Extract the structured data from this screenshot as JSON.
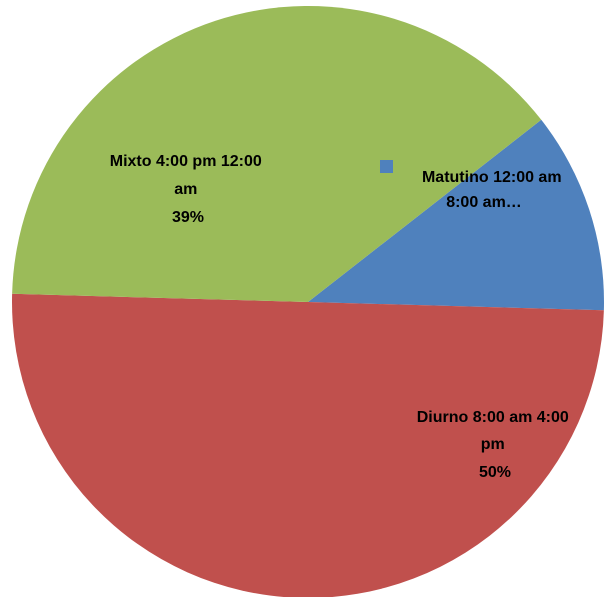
{
  "chart_data": {
    "type": "pie",
    "slices": [
      {
        "name": "Matutino 12:00 am 8:00 am…",
        "lines": [
          "Matutino 12:00 am",
          "8:00 am…"
        ],
        "value": 11,
        "color": "#4F81BD",
        "show_percent": false
      },
      {
        "name": "Diurno 8:00 am 4:00 pm",
        "lines": [
          "Diurno 8:00 am 4:00",
          "pm"
        ],
        "value": 50,
        "color": "#C0504D",
        "show_percent": true,
        "percent_label": "50%"
      },
      {
        "name": "Mixto 4:00 pm 12:00 am",
        "lines": [
          "Mixto 4:00 pm 12:00",
          "am"
        ],
        "value": 39,
        "color": "#9BBB59",
        "show_percent": true,
        "percent_label": "39%"
      }
    ],
    "start_angle_deg": 38,
    "direction": "clockwise",
    "legend_marker_on": "Matutino 12:00 am 8:00 am…"
  }
}
